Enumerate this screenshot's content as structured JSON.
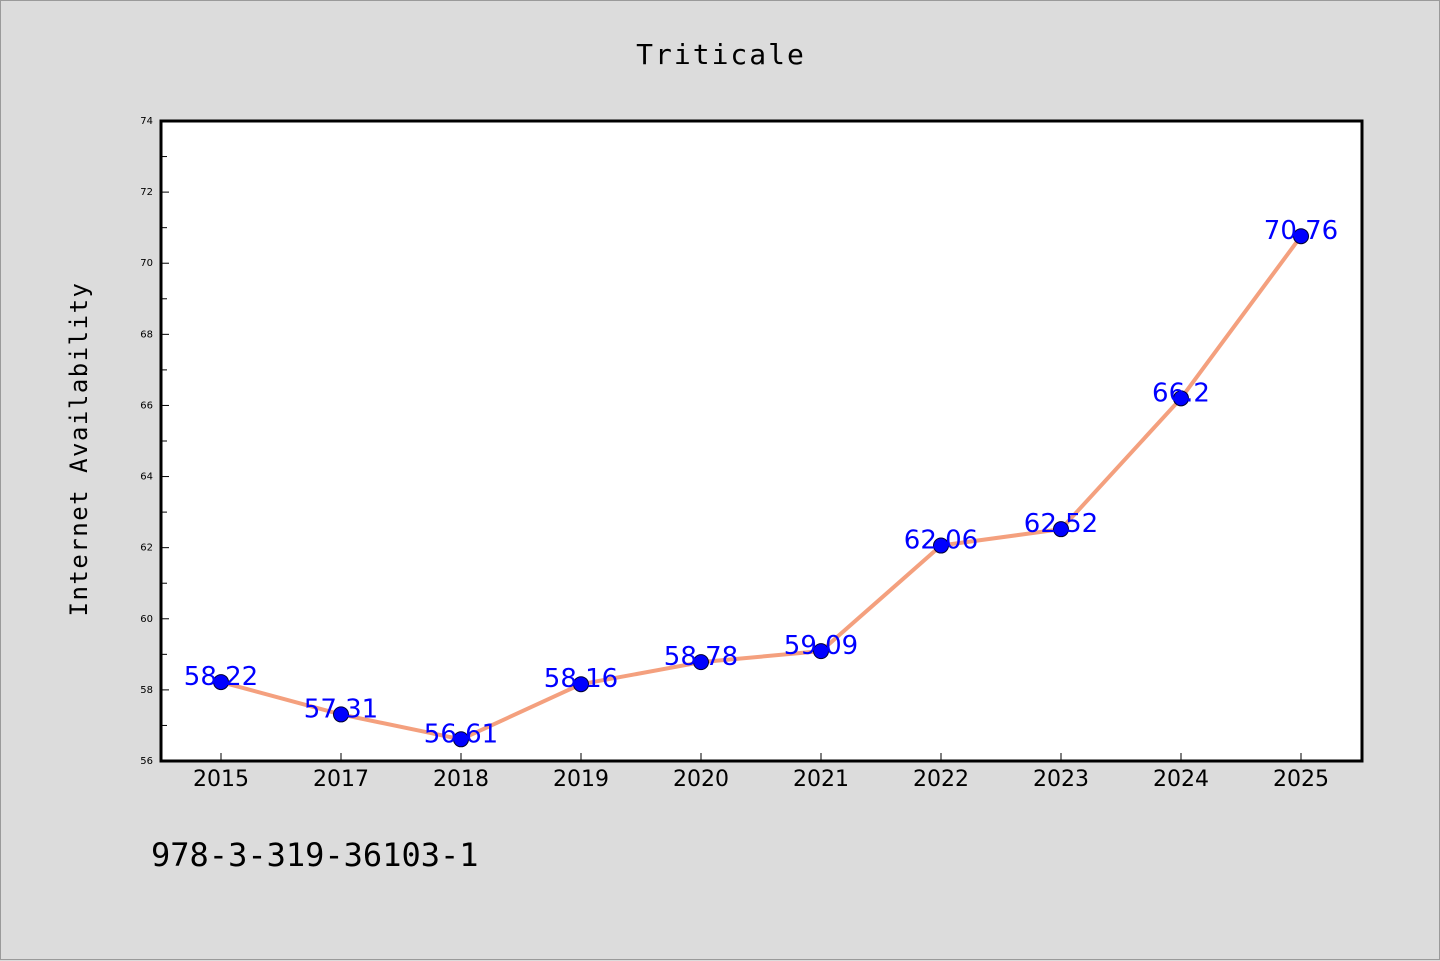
{
  "chart_data": {
    "type": "line",
    "title": "Triticale",
    "xlabel": "",
    "ylabel": "Internet Availability",
    "categories": [
      "2015",
      "2017",
      "2018",
      "2019",
      "2020",
      "2021",
      "2022",
      "2023",
      "2024",
      "2025"
    ],
    "series": [
      {
        "values": [
          58.22,
          57.31,
          56.61,
          58.16,
          58.78,
          59.09,
          62.06,
          62.52,
          66.2,
          70.76
        ],
        "labels": [
          "58.22",
          "57.31",
          "56.61",
          "58.16",
          "58.78",
          "59.09",
          "62.06",
          "62.52",
          "66.2",
          "70.76"
        ]
      }
    ],
    "ylim": [
      56,
      74
    ],
    "yticks": [
      "56",
      "58",
      "60",
      "62",
      "64",
      "66",
      "68",
      "70",
      "72",
      "74"
    ],
    "grid": false,
    "legend": "none",
    "colors": {
      "line": "#f4a07e",
      "marker": "#0000ff",
      "data_label": "#0000ff",
      "plot_background": "#ffffff",
      "page_background": "#dcdcdc"
    }
  },
  "footer": {
    "isbn": "978-3-319-36103-1"
  }
}
